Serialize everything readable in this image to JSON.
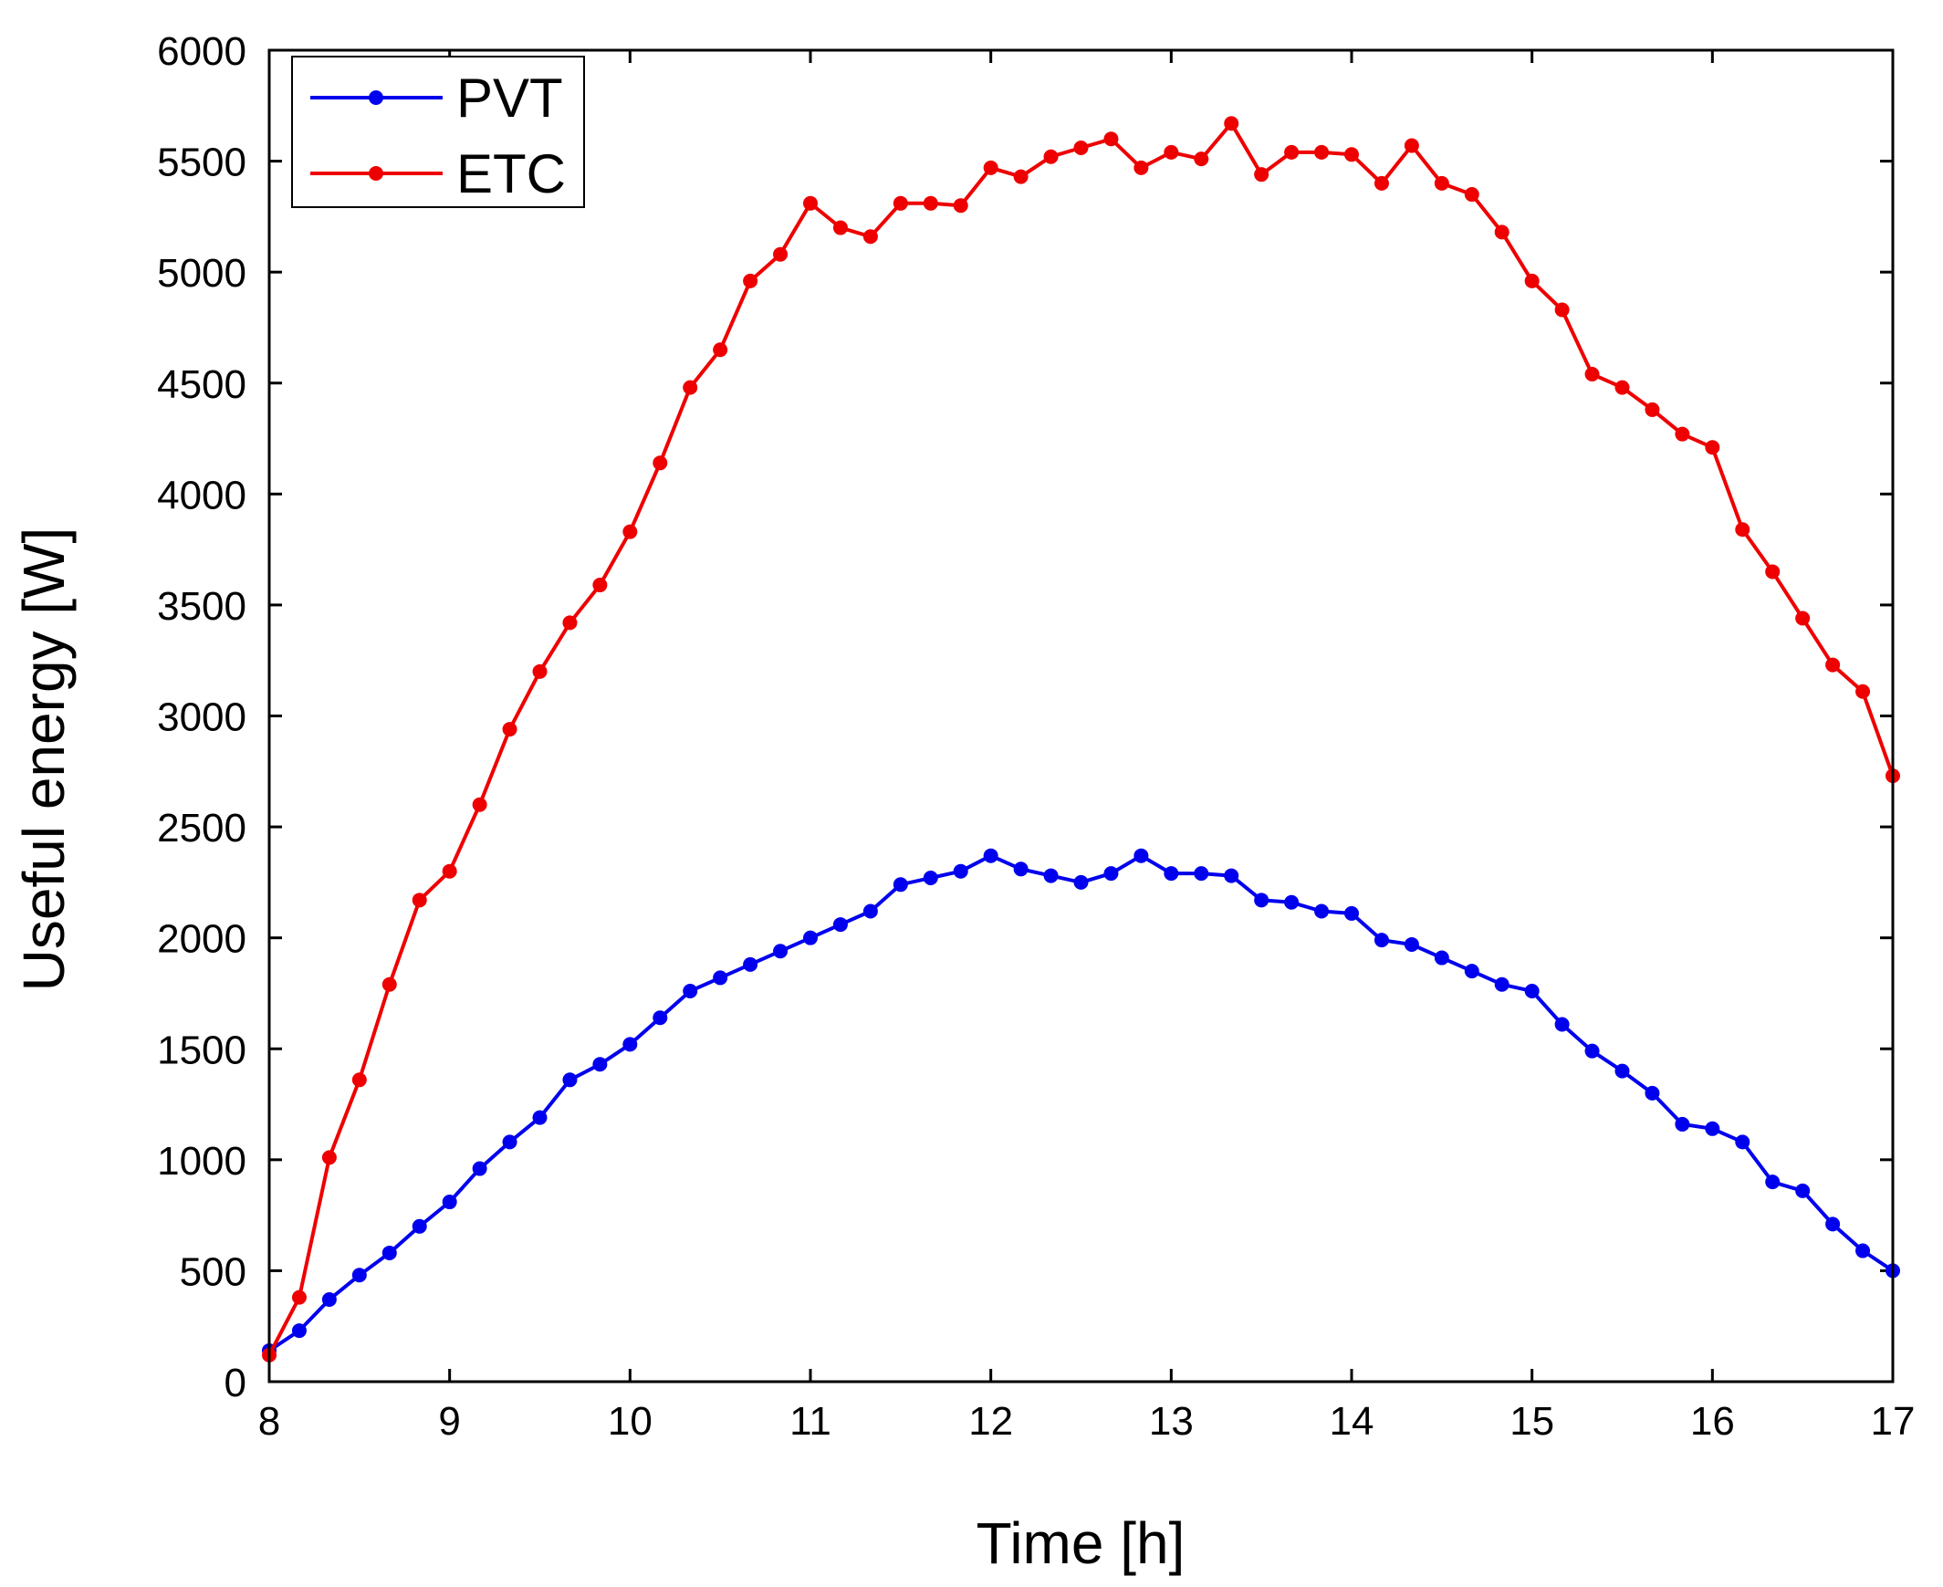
{
  "chart_data": {
    "type": "line",
    "title": "",
    "xlabel": "Time [h]",
    "ylabel": "Useful energy [W]",
    "xlim": [
      8,
      17
    ],
    "ylim": [
      0,
      6000
    ],
    "xticks": [
      8,
      9,
      10,
      11,
      12,
      13,
      14,
      15,
      16,
      17
    ],
    "yticks": [
      0,
      500,
      1000,
      1500,
      2000,
      2500,
      3000,
      3500,
      4000,
      4500,
      5000,
      5500,
      6000
    ],
    "grid": false,
    "legend_position": "top-left",
    "x": [
      8,
      8.1667,
      8.3333,
      8.5,
      8.6667,
      8.8333,
      9,
      9.1667,
      9.3333,
      9.5,
      9.6667,
      9.8333,
      10,
      10.1667,
      10.3333,
      10.5,
      10.6667,
      10.8333,
      11,
      11.1667,
      11.3333,
      11.5,
      11.6667,
      11.8333,
      12,
      12.1667,
      12.3333,
      12.5,
      12.6667,
      12.8333,
      13,
      13.1667,
      13.3333,
      13.5,
      13.6667,
      13.8333,
      14,
      14.1667,
      14.3333,
      14.5,
      14.6667,
      14.8333,
      15,
      15.1667,
      15.3333,
      15.5,
      15.6667,
      15.8333,
      16,
      16.1667,
      16.3333,
      16.5,
      16.6667,
      16.8333,
      17
    ],
    "series": [
      {
        "name": "PVT",
        "color": "#0000ee",
        "values": [
          140,
          230,
          370,
          480,
          580,
          700,
          810,
          960,
          1080,
          1190,
          1360,
          1430,
          1520,
          1640,
          1760,
          1820,
          1880,
          1940,
          2000,
          2060,
          2120,
          2240,
          2270,
          2300,
          2370,
          2310,
          2280,
          2250,
          2290,
          2370,
          2290,
          2290,
          2280,
          2170,
          2160,
          2120,
          2110,
          1990,
          1970,
          1910,
          1850,
          1790,
          1760,
          1610,
          1490,
          1400,
          1300,
          1160,
          1140,
          1080,
          900,
          860,
          710,
          590,
          500
        ]
      },
      {
        "name": "ETC",
        "color": "#ee0000",
        "values": [
          120,
          380,
          1010,
          1360,
          1790,
          2170,
          2300,
          2600,
          2940,
          3200,
          3420,
          3590,
          3830,
          4140,
          4480,
          4650,
          4960,
          5080,
          5310,
          5200,
          5160,
          5310,
          5310,
          5300,
          5470,
          5430,
          5520,
          5560,
          5600,
          5470,
          5540,
          5510,
          5670,
          5440,
          5540,
          5540,
          5530,
          5400,
          5570,
          5400,
          5350,
          5180,
          4960,
          4830,
          4540,
          4480,
          4380,
          4270,
          4210,
          3840,
          3650,
          3440,
          3230,
          3110,
          2730
        ]
      }
    ]
  }
}
